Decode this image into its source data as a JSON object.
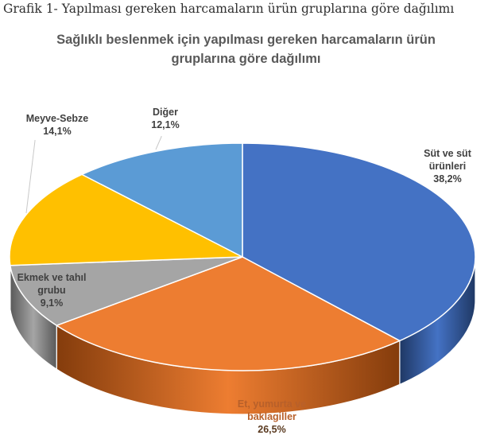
{
  "caption": "Grafik 1- Yapılması gereken harcamaların ürün gruplarına göre dağılımı",
  "chart_data": {
    "type": "pie",
    "title_line1": "Sağlıklı beslenmek için yapılması gereken harcamaların ürün",
    "title_line2": "gruplarına göre dağılımı",
    "slices": [
      {
        "label_lines": [
          "Süt ve süt",
          "ürünleri"
        ],
        "value": 38.2,
        "value_text": "38,2%",
        "color": "#4472C4",
        "side_color": "#1F3864"
      },
      {
        "label_lines": [
          "Et, yumurta ve",
          "baklagiller"
        ],
        "value": 26.5,
        "value_text": "26,5%",
        "color": "#ED7D31",
        "side_color": "#843C0C"
      },
      {
        "label_lines": [
          "Ekmek ve tahıl",
          "grubu"
        ],
        "value": 9.1,
        "value_text": "9,1%",
        "color": "#A5A5A5",
        "side_color": "#595959"
      },
      {
        "label_lines": [
          "Meyve-Sebze"
        ],
        "value": 14.1,
        "value_text": "14,1%",
        "color": "#FFC000",
        "side_color": "#7F6000"
      },
      {
        "label_lines": [
          "Diğer"
        ],
        "value": 12.1,
        "value_text": "12,1%",
        "color": "#5B9BD5",
        "side_color": "#1F4E79"
      }
    ]
  }
}
